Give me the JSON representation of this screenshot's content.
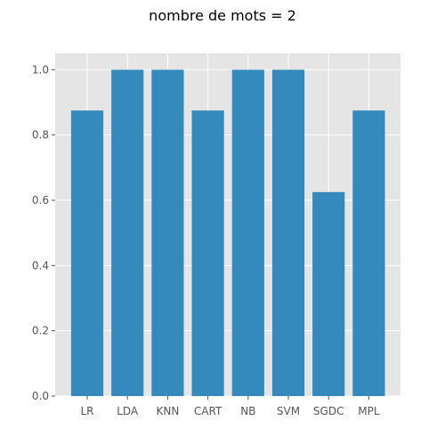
{
  "chart_data": {
    "type": "bar",
    "title": "nombre de mots = 2",
    "xlabel": "",
    "ylabel": "",
    "categories": [
      "LR",
      "LDA",
      "KNN",
      "CART",
      "NB",
      "SVM",
      "SGDC",
      "MPL"
    ],
    "values": [
      0.875,
      1.0,
      1.0,
      0.875,
      1.0,
      1.0,
      0.625,
      0.875
    ],
    "ylim": [
      0,
      1.05
    ],
    "yticks": [
      "0.0",
      "0.2",
      "0.4",
      "0.6",
      "0.8",
      "1.0"
    ],
    "grid": true,
    "colors": {
      "bar": "#348ABD",
      "plot_background": "#E5E5E5",
      "grid": "#FFFFFF"
    }
  }
}
